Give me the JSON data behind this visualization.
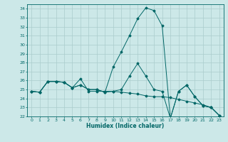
{
  "xlabel": "Humidex (Indice chaleur)",
  "ylabel": "",
  "bg_color": "#cce8e8",
  "grid_color": "#aacccc",
  "line_color": "#006666",
  "xlim": [
    -0.5,
    23.5
  ],
  "ylim": [
    22,
    34.5
  ],
  "yticks": [
    22,
    23,
    24,
    25,
    26,
    27,
    28,
    29,
    30,
    31,
    32,
    33,
    34
  ],
  "xticks": [
    0,
    1,
    2,
    3,
    4,
    5,
    6,
    7,
    8,
    9,
    10,
    11,
    12,
    13,
    14,
    15,
    16,
    17,
    18,
    19,
    20,
    21,
    22,
    23
  ],
  "series": [
    [
      24.8,
      24.7,
      25.9,
      25.9,
      25.8,
      25.2,
      25.5,
      25.0,
      25.0,
      24.7,
      27.5,
      29.2,
      31.0,
      32.9,
      34.1,
      33.8,
      32.1,
      21.8,
      24.8,
      25.5,
      24.2,
      23.2,
      23.0,
      22.1
    ],
    [
      24.8,
      24.7,
      25.9,
      25.9,
      25.8,
      25.2,
      26.2,
      24.8,
      24.8,
      24.8,
      24.8,
      24.7,
      24.6,
      24.5,
      24.3,
      24.2,
      24.2,
      24.1,
      23.9,
      23.7,
      23.5,
      23.3,
      23.0,
      22.1
    ],
    [
      24.8,
      24.7,
      25.9,
      25.9,
      25.8,
      25.2,
      25.5,
      25.0,
      25.0,
      24.7,
      24.8,
      25.0,
      26.5,
      27.9,
      26.5,
      25.0,
      24.8,
      21.8,
      24.8,
      25.5,
      24.2,
      23.2,
      23.0,
      22.1
    ]
  ]
}
